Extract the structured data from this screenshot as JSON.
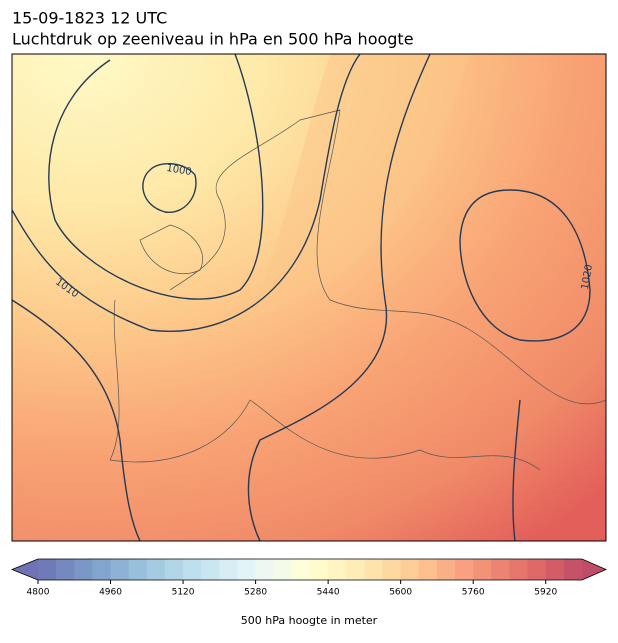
{
  "title": "15-09-1823 12 UTC",
  "subtitle": "Luchtdruk op zeeniveau in hPa en 500 hPa hoogte",
  "isobar_labels": [
    "1000",
    "1010",
    "1020"
  ],
  "colorbar": {
    "label": "500 hPa hoogte in meter",
    "range": [
      4800,
      6000
    ],
    "ticks": [
      4800,
      4960,
      5120,
      5280,
      5440,
      5600,
      5760,
      5920
    ],
    "colormap": [
      "#313695",
      "#4575b4",
      "#74add1",
      "#abd9e9",
      "#e0f3f8",
      "#ffffbf",
      "#fee090",
      "#fdae61",
      "#f46d43",
      "#d73027",
      "#a50026"
    ],
    "bins": 30,
    "opacity": 0.7,
    "extend": "both"
  }
}
